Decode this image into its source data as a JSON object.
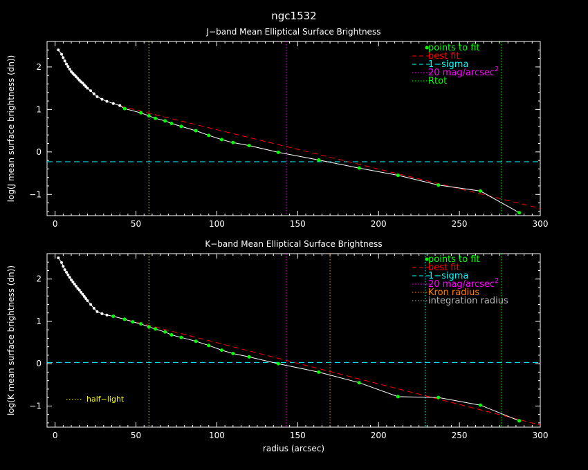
{
  "page": {
    "title": "ngc1532"
  },
  "chart_data": [
    {
      "type": "scatter",
      "id": "j",
      "title": "J−band Mean Elliptical Surface Brightness",
      "xlabel": "",
      "ylabel": "log(J mean surface brightness (dn))",
      "xlim": [
        -5,
        300
      ],
      "ylim": [
        -1.5,
        2.6
      ],
      "x_ticks": [
        0,
        50,
        100,
        150,
        200,
        250,
        300
      ],
      "y_ticks": [
        -1,
        0,
        1,
        2
      ],
      "grid": false,
      "legend_position": "top-right",
      "colors": {
        "inner": "#ffffff",
        "fit": "#00ff00",
        "best_fit": "#ff0000",
        "sigma": "#00ffff",
        "mag20": "#ff00ff",
        "rtot": "#00ff00",
        "half_light": "#ffff00"
      },
      "legend": [
        {
          "label": "points to fit",
          "color": "#00ff00",
          "marker": "dot"
        },
        {
          "label": "best fit",
          "color": "#ff0000",
          "marker": "dashed"
        },
        {
          "label": "1−sigma",
          "color": "#00ffff",
          "marker": "dashed"
        },
        {
          "label": "20 mag/arcsec",
          "sup": "2",
          "color": "#ff00ff",
          "marker": "dotted"
        },
        {
          "label": "Rtot",
          "color": "#00ff00",
          "marker": "dotted"
        }
      ],
      "inner_points": {
        "x": [
          2,
          4,
          5,
          6,
          7,
          8,
          9,
          10,
          11,
          12,
          13,
          14,
          15,
          16,
          17,
          18,
          19,
          20,
          22,
          24,
          26,
          29,
          32,
          36,
          40
        ],
        "y": [
          2.4,
          2.3,
          2.22,
          2.14,
          2.07,
          2.01,
          1.95,
          1.89,
          1.85,
          1.81,
          1.77,
          1.73,
          1.69,
          1.65,
          1.62,
          1.58,
          1.54,
          1.5,
          1.44,
          1.37,
          1.3,
          1.24,
          1.19,
          1.14,
          1.09
        ]
      },
      "fit_points": {
        "x": [
          43,
          53,
          58,
          62,
          68,
          72,
          78,
          87,
          95,
          103,
          110,
          120,
          138,
          163,
          188,
          212,
          237,
          263,
          287
        ],
        "y": [
          1.02,
          0.92,
          0.85,
          0.79,
          0.73,
          0.67,
          0.6,
          0.5,
          0.39,
          0.29,
          0.22,
          0.15,
          -0.01,
          -0.19,
          -0.38,
          -0.55,
          -0.78,
          -0.92,
          -1.43
        ]
      },
      "best_fit": {
        "x": [
          40,
          300
        ],
        "y": [
          1.08,
          -1.33
        ]
      },
      "sigma_level": -0.23,
      "verticals": [
        {
          "x": 58,
          "color": "#ffff00"
        },
        {
          "x": 143,
          "color": "#ff00ff"
        },
        {
          "x": 276,
          "color": "#00ff00"
        }
      ]
    },
    {
      "type": "scatter",
      "id": "k",
      "title": "K−band Mean Elliptical Surface Brightness",
      "xlabel": "radius (arcsec)",
      "ylabel": "log(K mean surface brightness (dn))",
      "xlim": [
        -5,
        300
      ],
      "ylim": [
        -1.5,
        2.6
      ],
      "x_ticks": [
        0,
        50,
        100,
        150,
        200,
        250,
        300
      ],
      "y_ticks": [
        -1,
        0,
        1,
        2
      ],
      "grid": false,
      "legend_position": "top-right",
      "colors": {
        "inner": "#ffffff",
        "fit": "#00ff00",
        "best_fit": "#ff0000",
        "sigma": "#00ffff",
        "mag20": "#ff00ff",
        "kron": "#ff8000",
        "integration": "#00ffff",
        "rtot": "#00ff00",
        "half_light": "#ffff00"
      },
      "legend": [
        {
          "label": "points to fit",
          "color": "#00ff00",
          "marker": "dot"
        },
        {
          "label": "best fit",
          "color": "#ff0000",
          "marker": "dashed"
        },
        {
          "label": "1−sigma",
          "color": "#00ffff",
          "marker": "dashed"
        },
        {
          "label": "20 mag/arcsec",
          "sup": "2",
          "color": "#ff00ff",
          "marker": "dotted"
        },
        {
          "label": "Kron radius",
          "color": "#ff8000",
          "marker": "dotted"
        },
        {
          "label": "integration radius",
          "color": "#b4b4b4",
          "marker": "dotted"
        }
      ],
      "half_light_label": "half−light",
      "inner_points": {
        "x": [
          2,
          4,
          5,
          6,
          7,
          8,
          9,
          10,
          11,
          12,
          13,
          14,
          15,
          16,
          17,
          18,
          19,
          20,
          22,
          24,
          26,
          29,
          32
        ],
        "y": [
          2.5,
          2.39,
          2.3,
          2.22,
          2.16,
          2.1,
          2.04,
          1.98,
          1.93,
          1.88,
          1.83,
          1.78,
          1.74,
          1.69,
          1.64,
          1.59,
          1.54,
          1.49,
          1.4,
          1.31,
          1.23,
          1.18,
          1.15
        ]
      },
      "fit_points": {
        "x": [
          36,
          43,
          48,
          53,
          58,
          62,
          68,
          72,
          78,
          87,
          95,
          103,
          110,
          120,
          138,
          163,
          188,
          212,
          237,
          263,
          287
        ],
        "y": [
          1.12,
          1.05,
          0.99,
          0.94,
          0.87,
          0.82,
          0.75,
          0.68,
          0.62,
          0.53,
          0.43,
          0.32,
          0.24,
          0.16,
          0.0,
          -0.2,
          -0.45,
          -0.78,
          -0.8,
          -0.98,
          -1.35
        ]
      },
      "best_fit": {
        "x": [
          40,
          300
        ],
        "y": [
          1.08,
          -1.45
        ]
      },
      "sigma_level": 0.03,
      "verticals": [
        {
          "x": 58,
          "color": "#ffff00"
        },
        {
          "x": 143,
          "color": "#ff00ff"
        },
        {
          "x": 170,
          "color": "#ff8000"
        },
        {
          "x": 229,
          "color": "#00ffff"
        },
        {
          "x": 276,
          "color": "#00ff00"
        }
      ]
    }
  ]
}
